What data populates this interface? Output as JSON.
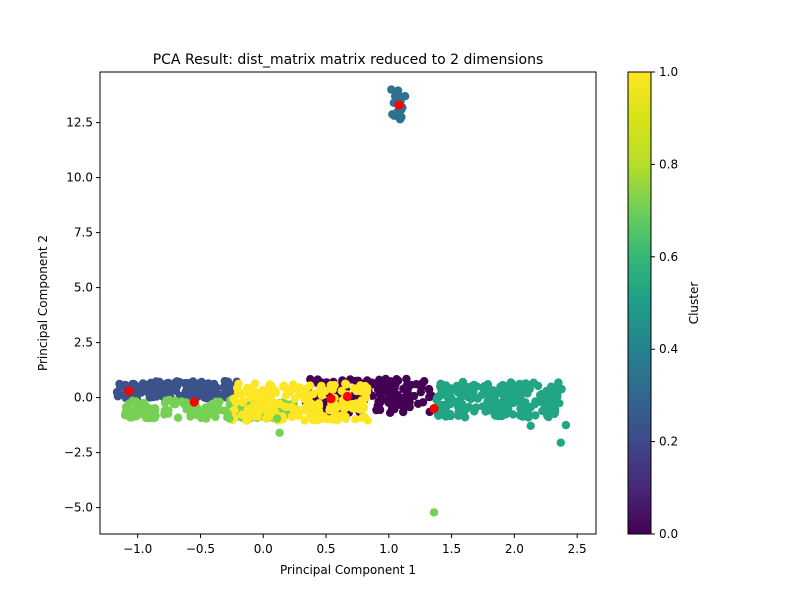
{
  "chart_data": {
    "type": "scatter",
    "title": "PCA Result: dist_matrix matrix reduced to 2 dimensions",
    "xlabel": "Principal Component 1",
    "ylabel": "Principal Component 2",
    "xlim": [
      -1.3,
      2.65
    ],
    "ylim": [
      -6.2,
      14.8
    ],
    "xticks": [
      -1.0,
      -0.5,
      0.0,
      0.5,
      1.0,
      1.5,
      2.0,
      2.5
    ],
    "xtick_labels": [
      "−1.0",
      "−0.5",
      "0.0",
      "0.5",
      "1.0",
      "1.5",
      "2.0",
      "2.5"
    ],
    "yticks": [
      -5.0,
      -2.5,
      0.0,
      2.5,
      5.0,
      7.5,
      10.0,
      12.5
    ],
    "ytick_labels": [
      "−5.0",
      "−2.5",
      "0.0",
      "2.5",
      "5.0",
      "7.5",
      "10.0",
      "12.5"
    ],
    "grid": false,
    "colormap": "viridis",
    "colorbar": {
      "label": "Cluster",
      "range": [
        0.0,
        1.0
      ],
      "ticks": [
        0.0,
        0.2,
        0.4,
        0.6,
        0.8,
        1.0
      ],
      "tick_labels": [
        "0.0",
        "0.2",
        "0.4",
        "0.6",
        "0.8",
        "1.0"
      ]
    },
    "clusters": [
      {
        "value": 0.0,
        "color": "#440154",
        "x_range": [
          0.33,
          1.35
        ],
        "y_range": [
          -0.7,
          0.85
        ],
        "count": 160
      },
      {
        "value": 0.2,
        "color": "#3b528b",
        "x_range": [
          -1.17,
          -0.2
        ],
        "y_range": [
          -0.05,
          0.75
        ],
        "count": 170
      },
      {
        "value": 0.4,
        "color": "#2c728e",
        "x_range": [
          1.02,
          1.12
        ],
        "y_range": [
          12.7,
          14.0
        ],
        "count": 10
      },
      {
        "value": 0.6,
        "color": "#21a585",
        "x_range": [
          1.38,
          2.38
        ],
        "y_range": [
          -0.9,
          0.75
        ],
        "count": 220
      },
      {
        "value": 0.8,
        "color": "#75d054",
        "x_range": [
          -1.12,
          0.25
        ],
        "y_range": [
          -0.95,
          -0.1
        ],
        "count": 170
      },
      {
        "value": 1.0,
        "color": "#fde725",
        "x_range": [
          -0.25,
          0.85
        ],
        "y_range": [
          -1.05,
          0.65
        ],
        "count": 200
      }
    ],
    "outliers": [
      {
        "x": 0.13,
        "y": -1.6,
        "color": "#75d054"
      },
      {
        "x": 1.36,
        "y": -5.22,
        "color": "#75d054"
      },
      {
        "x": 2.37,
        "y": -2.05,
        "color": "#21a585"
      },
      {
        "x": 2.41,
        "y": -1.25,
        "color": "#21a585"
      },
      {
        "x": 2.13,
        "y": -1.28,
        "color": "#21a585"
      },
      {
        "x": 0.11,
        "y": -0.95,
        "color": "#75d054"
      },
      {
        "x": -0.27,
        "y": -0.95,
        "color": "#75d054"
      },
      {
        "x": 1.02,
        "y": 14.0,
        "color": "#2c728e"
      },
      {
        "x": 1.05,
        "y": 13.7,
        "color": "#2c728e"
      },
      {
        "x": 1.13,
        "y": 13.7,
        "color": "#2c728e"
      },
      {
        "x": 1.07,
        "y": 13.0,
        "color": "#2c728e"
      },
      {
        "x": 1.1,
        "y": 12.75,
        "color": "#2c728e"
      },
      {
        "x": 1.09,
        "y": 12.65,
        "color": "#2c728e"
      },
      {
        "x": 1.04,
        "y": 13.4,
        "color": "#2c728e"
      }
    ],
    "centroids": {
      "color": "#ff0000",
      "points": [
        {
          "x": -1.07,
          "y": 0.3
        },
        {
          "x": -0.55,
          "y": -0.2
        },
        {
          "x": 0.54,
          "y": -0.05
        },
        {
          "x": 0.67,
          "y": 0.05
        },
        {
          "x": 1.08,
          "y": 13.3
        },
        {
          "x": 1.36,
          "y": -0.5
        }
      ]
    }
  }
}
